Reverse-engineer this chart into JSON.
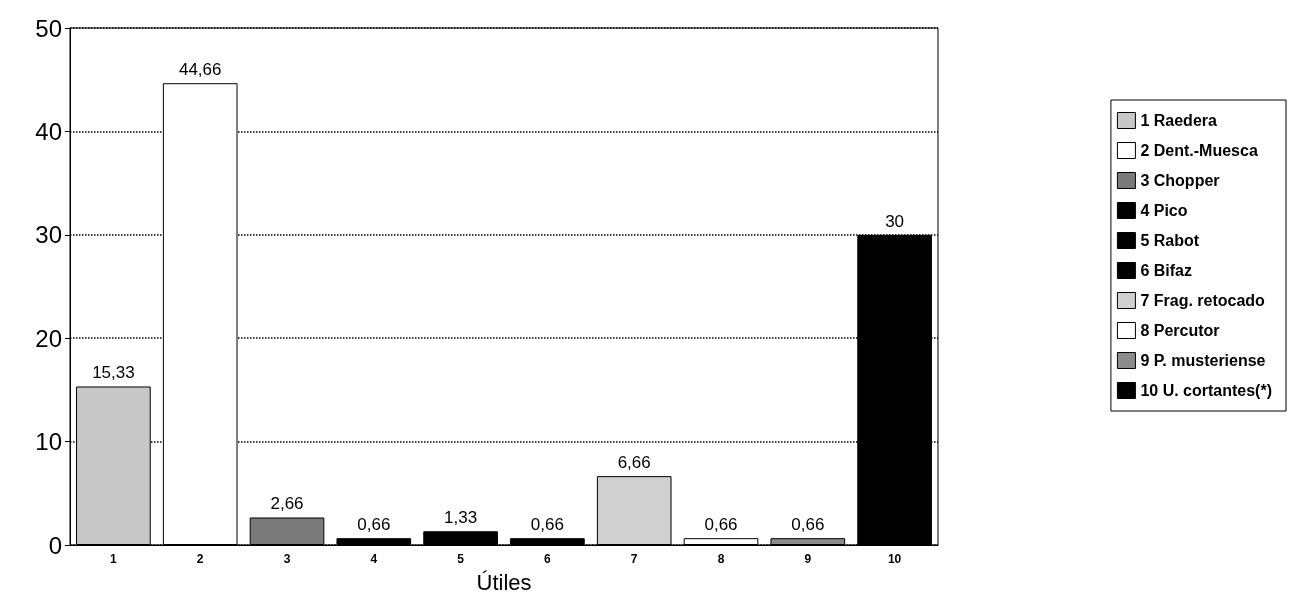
{
  "chart_data": {
    "type": "bar",
    "xlabel": "Útiles",
    "categories": [
      "1",
      "2",
      "3",
      "4",
      "5",
      "6",
      "7",
      "8",
      "9",
      "10"
    ],
    "series": [
      {
        "name": "1 Raedera",
        "color": "#c8c8c8",
        "values": [
          15.33,
          null,
          null,
          null,
          null,
          null,
          null,
          null,
          null,
          null
        ],
        "value_labels": [
          "15,33",
          null,
          null,
          null,
          null,
          null,
          null,
          null,
          null,
          null
        ]
      },
      {
        "name": "2 Dent.-Muesca",
        "color": "#ffffff",
        "values": [
          null,
          44.66,
          null,
          null,
          null,
          null,
          null,
          null,
          null,
          null
        ],
        "value_labels": [
          null,
          "44,66",
          null,
          null,
          null,
          null,
          null,
          null,
          null,
          null
        ]
      },
      {
        "name": "3 Chopper",
        "color": "#7a7a7a",
        "values": [
          null,
          null,
          2.66,
          null,
          null,
          null,
          null,
          null,
          null,
          null
        ],
        "value_labels": [
          null,
          null,
          "2,66",
          null,
          null,
          null,
          null,
          null,
          null,
          null
        ]
      },
      {
        "name": "4 Pico",
        "color": "#000000",
        "values": [
          null,
          null,
          null,
          0.66,
          null,
          null,
          null,
          null,
          null,
          null
        ],
        "value_labels": [
          null,
          null,
          null,
          "0,66",
          null,
          null,
          null,
          null,
          null,
          null
        ]
      },
      {
        "name": "5 Rabot",
        "color": "#000000",
        "values": [
          null,
          null,
          null,
          null,
          1.33,
          null,
          null,
          null,
          null,
          null
        ],
        "value_labels": [
          null,
          null,
          null,
          null,
          "1,33",
          null,
          null,
          null,
          null,
          null
        ]
      },
      {
        "name": "6 Bifaz",
        "color": "#000000",
        "values": [
          null,
          null,
          null,
          null,
          null,
          0.66,
          null,
          null,
          null,
          null
        ],
        "value_labels": [
          null,
          null,
          null,
          null,
          null,
          "0,66",
          null,
          null,
          null,
          null
        ]
      },
      {
        "name": "7 Frag. retocado",
        "color": "#d0d0d0",
        "values": [
          null,
          null,
          null,
          null,
          null,
          null,
          6.66,
          null,
          null,
          null
        ],
        "value_labels": [
          null,
          null,
          null,
          null,
          null,
          null,
          "6,66",
          null,
          null,
          null
        ]
      },
      {
        "name": "8 Percutor",
        "color": "#ffffff",
        "values": [
          null,
          null,
          null,
          null,
          null,
          null,
          null,
          0.66,
          null,
          null
        ],
        "value_labels": [
          null,
          null,
          null,
          null,
          null,
          null,
          null,
          "0,66",
          null,
          null
        ]
      },
      {
        "name": "9 P. musteriense",
        "color": "#8c8c8c",
        "values": [
          null,
          null,
          null,
          null,
          null,
          null,
          null,
          null,
          0.66,
          null
        ],
        "value_labels": [
          null,
          null,
          null,
          null,
          null,
          null,
          null,
          null,
          "0,66",
          null
        ]
      },
      {
        "name": "10 U. cortantes(*)",
        "color": "#000000",
        "values": [
          null,
          null,
          null,
          null,
          null,
          null,
          null,
          null,
          null,
          30
        ],
        "value_labels": [
          null,
          null,
          null,
          null,
          null,
          null,
          null,
          null,
          null,
          "30"
        ]
      }
    ],
    "ylim": [
      0,
      50
    ],
    "yticks": [
      0,
      10,
      20,
      30,
      40,
      50
    ],
    "grid": "y",
    "legend": "right"
  }
}
